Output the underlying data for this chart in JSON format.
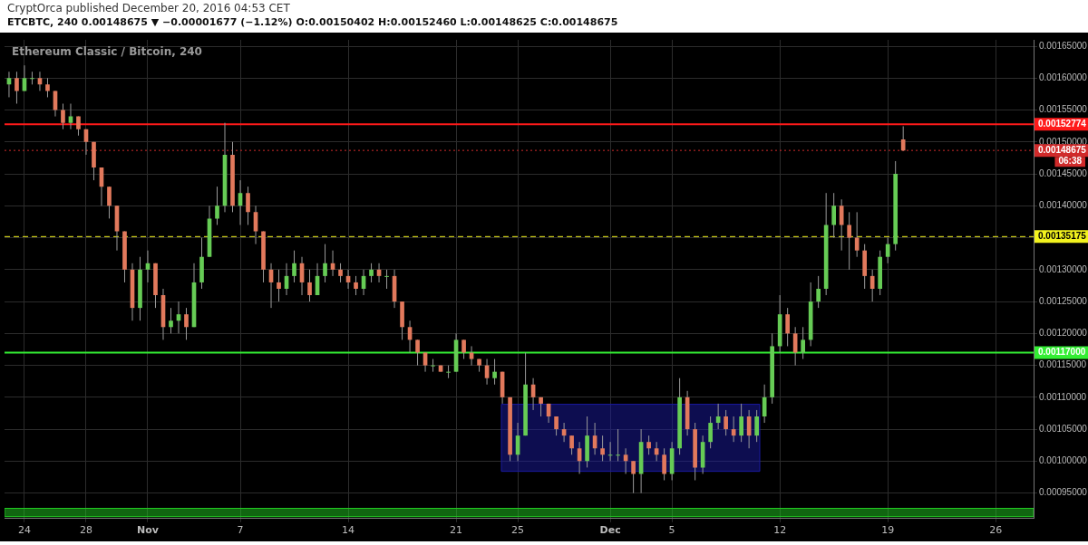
{
  "chart_data": {
    "type": "candlestick",
    "title": "Ethereum Classic / Bitcoin, 240",
    "subtitle": "ETCBTC, 240  0.00148675 ▼ −0.00001677 (−1.12%) O:0.00150402 H:0.00152460 L:0.00148625 C:0.00148675",
    "annotations": [
      "CryptOrca published December 20, 2016 04:53 CET",
      "06:38"
    ],
    "grid": true,
    "xlim": [
      "2016-10-22T17:00",
      "2016-12-28T11:00"
    ],
    "xticks": [
      {
        "value": "2016-10-24",
        "label": "24"
      },
      {
        "value": "2016-10-28",
        "label": "28"
      },
      {
        "value": "2016-11-01",
        "label": "Nov"
      },
      {
        "value": "2016-11-07",
        "label": "7"
      },
      {
        "value": "2016-11-14",
        "label": "14"
      },
      {
        "value": "2016-11-21",
        "label": "21"
      },
      {
        "value": "2016-11-25",
        "label": "25"
      },
      {
        "value": "2016-12-01",
        "label": "Dec"
      },
      {
        "value": "2016-12-05",
        "label": "5"
      },
      {
        "value": "2016-12-12",
        "label": "12"
      },
      {
        "value": "2016-12-19",
        "label": "19"
      },
      {
        "value": "2016-12-26",
        "label": "26"
      }
    ],
    "ylim": [
      0.00091,
      0.00166
    ],
    "yticks": [
      {
        "value": 0.00095,
        "label": "0.00095000"
      },
      {
        "value": 0.001,
        "label": "0.00100000"
      },
      {
        "value": 0.00105,
        "label": "0.00105000"
      },
      {
        "value": 0.0011,
        "label": "0.00110000"
      },
      {
        "value": 0.00115,
        "label": "0.00115000"
      },
      {
        "value": 0.0012,
        "label": "0.00120000"
      },
      {
        "value": 0.00125,
        "label": "0.00125000"
      },
      {
        "value": 0.0013,
        "label": "0.00130000"
      },
      {
        "value": 0.00135,
        "label": null
      },
      {
        "value": 0.0014,
        "label": "0.00140000"
      },
      {
        "value": 0.00145,
        "label": "0.00145000"
      },
      {
        "value": 0.0015,
        "label": "0.00150000"
      },
      {
        "value": 0.00155,
        "label": "0.00155000"
      },
      {
        "value": 0.0016,
        "label": "0.00160000"
      },
      {
        "value": 0.00165,
        "label": "0.00165000"
      }
    ],
    "ref_lines": [
      {
        "axis": "y",
        "value": 0.00152774,
        "label": "0.00152774",
        "color": "#ff1a1a",
        "line_style": "solid"
      },
      {
        "axis": "y",
        "value": 0.00148675,
        "label": "0.00148675",
        "color": "#d02a2a",
        "line_style": "dotted"
      },
      {
        "axis": "y",
        "value": 0.00135175,
        "label": "0.00135175",
        "color": "#f2f21e",
        "line_style": "dashed"
      },
      {
        "axis": "y",
        "value": 0.00117,
        "label": "0.00117000",
        "color": "#33ee33",
        "line_style": "solid"
      }
    ],
    "bands": [
      {
        "axis": "y",
        "from": 0.000984,
        "to": 0.001089,
        "color": "#1a1aa0"
      },
      {
        "axis": "y",
        "from": 0.000913,
        "to": 0.000926,
        "color": "#22cc22"
      }
    ],
    "x": [
      "2016-10-23T00:00",
      "2016-10-23T12:00",
      "2016-10-24T00:00",
      "2016-10-24T12:00",
      "2016-10-25T00:00",
      "2016-10-25T12:00",
      "2016-10-26T00:00",
      "2016-10-26T12:00",
      "2016-10-27T00:00",
      "2016-10-27T12:00",
      "2016-10-28T00:00",
      "2016-10-28T12:00",
      "2016-10-29T00:00",
      "2016-10-29T12:00",
      "2016-10-30T00:00",
      "2016-10-30T12:00",
      "2016-10-31T00:00",
      "2016-10-31T12:00",
      "2016-11-01T00:00",
      "2016-11-01T12:00",
      "2016-11-02T00:00",
      "2016-11-02T12:00",
      "2016-11-03T00:00",
      "2016-11-03T12:00",
      "2016-11-04T00:00",
      "2016-11-04T12:00",
      "2016-11-05T00:00",
      "2016-11-05T12:00",
      "2016-11-06T00:00",
      "2016-11-06T12:00",
      "2016-11-07T00:00",
      "2016-11-07T12:00",
      "2016-11-08T00:00",
      "2016-11-08T12:00",
      "2016-11-09T00:00",
      "2016-11-09T12:00",
      "2016-11-10T00:00",
      "2016-11-10T12:00",
      "2016-11-11T00:00",
      "2016-11-11T12:00",
      "2016-11-12T00:00",
      "2016-11-12T12:00",
      "2016-11-13T00:00",
      "2016-11-13T12:00",
      "2016-11-14T00:00",
      "2016-11-14T12:00",
      "2016-11-15T00:00",
      "2016-11-15T12:00",
      "2016-11-16T00:00",
      "2016-11-16T12:00",
      "2016-11-17T00:00",
      "2016-11-17T12:00",
      "2016-11-18T00:00",
      "2016-11-18T12:00",
      "2016-11-19T00:00",
      "2016-11-19T12:00",
      "2016-11-20T00:00",
      "2016-11-20T12:00",
      "2016-11-21T00:00",
      "2016-11-21T12:00",
      "2016-11-22T00:00",
      "2016-11-22T12:00",
      "2016-11-23T00:00",
      "2016-11-23T12:00",
      "2016-11-24T00:00",
      "2016-11-24T12:00",
      "2016-11-25T00:00",
      "2016-11-25T12:00",
      "2016-11-26T00:00",
      "2016-11-26T12:00",
      "2016-11-27T00:00",
      "2016-11-27T12:00",
      "2016-11-28T00:00",
      "2016-11-28T12:00",
      "2016-11-29T00:00",
      "2016-11-29T12:00",
      "2016-11-30T00:00",
      "2016-11-30T12:00",
      "2016-12-01T00:00",
      "2016-12-01T12:00",
      "2016-12-02T00:00",
      "2016-12-02T12:00",
      "2016-12-03T00:00",
      "2016-12-03T12:00",
      "2016-12-04T00:00",
      "2016-12-04T12:00",
      "2016-12-05T00:00",
      "2016-12-05T12:00",
      "2016-12-06T00:00",
      "2016-12-06T12:00",
      "2016-12-07T00:00",
      "2016-12-07T12:00",
      "2016-12-08T00:00",
      "2016-12-08T12:00",
      "2016-12-09T00:00",
      "2016-12-09T12:00",
      "2016-12-10T00:00",
      "2016-12-10T12:00",
      "2016-12-11T00:00",
      "2016-12-11T12:00",
      "2016-12-12T00:00",
      "2016-12-12T12:00",
      "2016-12-13T00:00",
      "2016-12-13T12:00",
      "2016-12-14T00:00",
      "2016-12-14T12:00",
      "2016-12-15T00:00",
      "2016-12-15T12:00",
      "2016-12-16T00:00",
      "2016-12-16T12:00",
      "2016-12-17T00:00",
      "2016-12-17T12:00",
      "2016-12-18T00:00",
      "2016-12-18T12:00",
      "2016-12-19T00:00",
      "2016-12-19T12:00",
      "2016-12-20T00:00"
    ],
    "ohlc": [
      [
        0.00159,
        0.00161,
        0.00157,
        0.0016
      ],
      [
        0.0016,
        0.00161,
        0.00156,
        0.00158
      ],
      [
        0.00158,
        0.00162,
        0.00158,
        0.0016
      ],
      [
        0.0016,
        0.00161,
        0.00159,
        0.0016
      ],
      [
        0.0016,
        0.00161,
        0.00158,
        0.00159
      ],
      [
        0.00159,
        0.0016,
        0.00157,
        0.00158
      ],
      [
        0.00158,
        0.00158,
        0.00154,
        0.00155
      ],
      [
        0.00155,
        0.00156,
        0.00152,
        0.00153
      ],
      [
        0.00153,
        0.00156,
        0.00152,
        0.00154
      ],
      [
        0.00154,
        0.00154,
        0.00151,
        0.00152
      ],
      [
        0.00152,
        0.00152,
        0.00148,
        0.0015
      ],
      [
        0.0015,
        0.0015,
        0.00144,
        0.00146
      ],
      [
        0.00146,
        0.00146,
        0.0014,
        0.00143
      ],
      [
        0.00143,
        0.00143,
        0.00138,
        0.0014
      ],
      [
        0.0014,
        0.0014,
        0.00133,
        0.00136
      ],
      [
        0.00136,
        0.00136,
        0.00128,
        0.0013
      ],
      [
        0.0013,
        0.00131,
        0.00122,
        0.00124
      ],
      [
        0.00124,
        0.00132,
        0.00122,
        0.0013
      ],
      [
        0.0013,
        0.00133,
        0.00128,
        0.00131
      ],
      [
        0.00131,
        0.00131,
        0.00124,
        0.00126
      ],
      [
        0.00126,
        0.00127,
        0.00119,
        0.00121
      ],
      [
        0.00121,
        0.00124,
        0.0012,
        0.00122
      ],
      [
        0.00122,
        0.00125,
        0.0012,
        0.00123
      ],
      [
        0.00123,
        0.00124,
        0.00119,
        0.00121
      ],
      [
        0.00121,
        0.00131,
        0.00121,
        0.00128
      ],
      [
        0.00128,
        0.00135,
        0.00127,
        0.00132
      ],
      [
        0.00132,
        0.0014,
        0.00132,
        0.00138
      ],
      [
        0.00138,
        0.00143,
        0.00137,
        0.0014
      ],
      [
        0.0014,
        0.00153,
        0.00139,
        0.00148
      ],
      [
        0.00148,
        0.0015,
        0.00139,
        0.0014
      ],
      [
        0.0014,
        0.00144,
        0.00137,
        0.00142
      ],
      [
        0.00142,
        0.00143,
        0.00137,
        0.00139
      ],
      [
        0.00139,
        0.0014,
        0.00134,
        0.00136
      ],
      [
        0.00136,
        0.00136,
        0.00128,
        0.0013
      ],
      [
        0.0013,
        0.00131,
        0.00124,
        0.00128
      ],
      [
        0.00128,
        0.0013,
        0.00125,
        0.00127
      ],
      [
        0.00127,
        0.00131,
        0.00126,
        0.00129
      ],
      [
        0.00129,
        0.00133,
        0.00128,
        0.00131
      ],
      [
        0.00131,
        0.00132,
        0.00126,
        0.00128
      ],
      [
        0.00128,
        0.0013,
        0.00125,
        0.00126
      ],
      [
        0.00126,
        0.00131,
        0.00126,
        0.00129
      ],
      [
        0.00129,
        0.00134,
        0.00128,
        0.00131
      ],
      [
        0.00131,
        0.00133,
        0.00129,
        0.0013
      ],
      [
        0.0013,
        0.00131,
        0.00128,
        0.00129
      ],
      [
        0.00129,
        0.0013,
        0.00127,
        0.00128
      ],
      [
        0.00128,
        0.00129,
        0.00126,
        0.00127
      ],
      [
        0.00127,
        0.0013,
        0.00126,
        0.00129
      ],
      [
        0.00129,
        0.00131,
        0.00128,
        0.0013
      ],
      [
        0.0013,
        0.00131,
        0.00128,
        0.00129
      ],
      [
        0.00129,
        0.0013,
        0.00127,
        0.00129
      ],
      [
        0.00129,
        0.0013,
        0.00124,
        0.00125
      ],
      [
        0.00125,
        0.00125,
        0.00119,
        0.00121
      ],
      [
        0.00121,
        0.00122,
        0.00117,
        0.00119
      ],
      [
        0.00119,
        0.00119,
        0.00115,
        0.00117
      ],
      [
        0.00117,
        0.00117,
        0.00114,
        0.00115
      ],
      [
        0.00115,
        0.00116,
        0.00114,
        0.00115
      ],
      [
        0.00115,
        0.00115,
        0.00114,
        0.00114
      ],
      [
        0.00114,
        0.00115,
        0.00113,
        0.00114
      ],
      [
        0.00114,
        0.0012,
        0.00114,
        0.00119
      ],
      [
        0.00119,
        0.00119,
        0.00116,
        0.00117
      ],
      [
        0.00117,
        0.00118,
        0.00115,
        0.00116
      ],
      [
        0.00116,
        0.00116,
        0.00114,
        0.00115
      ],
      [
        0.00115,
        0.00116,
        0.00112,
        0.00113
      ],
      [
        0.00113,
        0.00116,
        0.00112,
        0.00114
      ],
      [
        0.00114,
        0.00114,
        0.00109,
        0.0011
      ],
      [
        0.0011,
        0.0011,
        0.001,
        0.00101
      ],
      [
        0.00101,
        0.00106,
        0.001,
        0.00104
      ],
      [
        0.00104,
        0.00117,
        0.00104,
        0.00112
      ],
      [
        0.00112,
        0.00113,
        0.00108,
        0.0011
      ],
      [
        0.0011,
        0.0011,
        0.00107,
        0.00109
      ],
      [
        0.00109,
        0.00109,
        0.00106,
        0.00107
      ],
      [
        0.00107,
        0.00107,
        0.00104,
        0.00105
      ],
      [
        0.00105,
        0.00106,
        0.00103,
        0.00104
      ],
      [
        0.00104,
        0.00104,
        0.00101,
        0.00102
      ],
      [
        0.00102,
        0.00103,
        0.00098,
        0.001
      ],
      [
        0.001,
        0.00107,
        0.00099,
        0.00104
      ],
      [
        0.00104,
        0.00106,
        0.00101,
        0.00102
      ],
      [
        0.00102,
        0.00104,
        0.001,
        0.00101
      ],
      [
        0.00101,
        0.00103,
        0.001,
        0.00101
      ],
      [
        0.00101,
        0.00105,
        0.001,
        0.00101
      ],
      [
        0.00101,
        0.00102,
        0.00098,
        0.001
      ],
      [
        0.001,
        0.001,
        0.00095,
        0.00098
      ],
      [
        0.00098,
        0.00105,
        0.00095,
        0.00103
      ],
      [
        0.00103,
        0.00104,
        0.00101,
        0.00102
      ],
      [
        0.00102,
        0.00103,
        0.001,
        0.00101
      ],
      [
        0.00101,
        0.00102,
        0.00097,
        0.00098
      ],
      [
        0.00098,
        0.00103,
        0.00097,
        0.00102
      ],
      [
        0.00102,
        0.00113,
        0.00101,
        0.0011
      ],
      [
        0.0011,
        0.00111,
        0.00104,
        0.00105
      ],
      [
        0.00105,
        0.00106,
        0.00097,
        0.00099
      ],
      [
        0.00099,
        0.00104,
        0.00098,
        0.00103
      ],
      [
        0.00103,
        0.00107,
        0.00102,
        0.00106
      ],
      [
        0.00106,
        0.00109,
        0.00105,
        0.00107
      ],
      [
        0.00107,
        0.00108,
        0.00104,
        0.00105
      ],
      [
        0.00105,
        0.00107,
        0.00103,
        0.00104
      ],
      [
        0.00104,
        0.00109,
        0.00103,
        0.00107
      ],
      [
        0.00107,
        0.00108,
        0.00102,
        0.00104
      ],
      [
        0.00104,
        0.00108,
        0.00103,
        0.00107
      ],
      [
        0.00107,
        0.00112,
        0.00106,
        0.0011
      ],
      [
        0.0011,
        0.0012,
        0.00109,
        0.00118
      ],
      [
        0.00118,
        0.00126,
        0.00117,
        0.00123
      ],
      [
        0.00123,
        0.00124,
        0.00118,
        0.0012
      ],
      [
        0.0012,
        0.00121,
        0.00115,
        0.00117
      ],
      [
        0.00117,
        0.00121,
        0.00116,
        0.00119
      ],
      [
        0.00119,
        0.00128,
        0.00118,
        0.00125
      ],
      [
        0.00125,
        0.00129,
        0.00124,
        0.00127
      ],
      [
        0.00127,
        0.00142,
        0.00126,
        0.00137
      ],
      [
        0.00137,
        0.00142,
        0.00135,
        0.0014
      ],
      [
        0.0014,
        0.00141,
        0.00133,
        0.00137
      ],
      [
        0.00137,
        0.00139,
        0.0013,
        0.00135
      ],
      [
        0.00135,
        0.00139,
        0.00132,
        0.00133
      ],
      [
        0.00133,
        0.00134,
        0.00127,
        0.00129
      ],
      [
        0.00129,
        0.0013,
        0.00125,
        0.00127
      ],
      [
        0.00127,
        0.00133,
        0.00126,
        0.00132
      ],
      [
        0.00132,
        0.00135,
        0.00131,
        0.00134
      ],
      [
        0.00134,
        0.00147,
        0.00133,
        0.00145
      ],
      [
        0.00150402,
        0.0015246,
        0.00148625,
        0.00148675
      ]
    ]
  }
}
